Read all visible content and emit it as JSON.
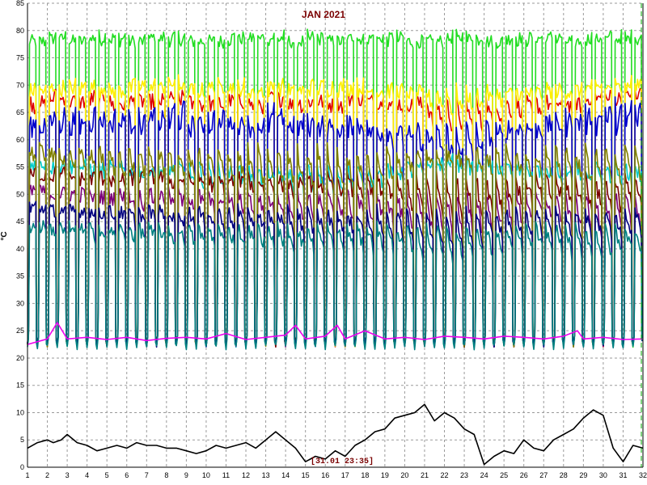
{
  "chart_data": {
    "type": "line",
    "title": "JAN 2021",
    "ylabel": "°C",
    "xlabel": "",
    "xlim": [
      1,
      32
    ],
    "ylim": [
      0,
      85
    ],
    "x_ticks": [
      1,
      2,
      3,
      4,
      5,
      6,
      7,
      8,
      9,
      10,
      11,
      12,
      13,
      14,
      15,
      16,
      17,
      18,
      19,
      20,
      21,
      22,
      23,
      24,
      25,
      26,
      27,
      28,
      29,
      30,
      31,
      32
    ],
    "y_ticks": [
      0,
      5,
      10,
      15,
      20,
      25,
      30,
      35,
      40,
      45,
      50,
      55,
      60,
      65,
      70,
      75,
      80,
      85
    ],
    "grid": true,
    "cursor_label": "[31.01 23:35]",
    "cursor_x": 32,
    "colors": {
      "title": "#7a0000",
      "grid": "#9a9a9a",
      "cursor": "#00aa00"
    },
    "series": [
      {
        "color": "#22dd22",
        "cycle": true,
        "base": 22,
        "peak": 78,
        "hold": 0.45,
        "noise": 2.5,
        "desc_values": [
          78,
          79,
          78,
          79,
          79,
          78,
          79,
          79,
          78,
          78,
          79,
          79,
          79,
          78,
          79,
          78,
          79,
          79,
          79,
          78,
          78,
          79,
          79,
          78,
          79,
          79,
          79,
          78,
          79,
          79,
          79
        ]
      },
      {
        "color": "#dd0000",
        "cycle": true,
        "base": 22,
        "peak": 67,
        "hold": 0.1,
        "noise": 3,
        "desc_values": [
          66,
          68,
          67,
          68,
          66,
          67,
          67,
          68,
          66,
          66,
          67,
          66,
          68,
          66,
          67,
          66,
          68,
          67,
          66,
          66,
          63,
          62,
          62,
          63,
          65,
          65,
          66,
          66,
          68,
          68,
          69
        ]
      },
      {
        "color": "#ffee00",
        "cycle": true,
        "base": 22,
        "peak": 69,
        "hold": 0.08,
        "noise": 3,
        "desc_values": [
          69,
          70,
          70,
          70,
          69,
          70,
          70,
          71,
          69,
          70,
          70,
          69,
          70,
          69,
          70,
          70,
          70,
          69,
          69,
          68,
          66,
          65,
          66,
          67,
          68,
          68,
          69,
          69,
          70,
          70,
          71
        ]
      },
      {
        "color": "#0000cc",
        "cycle": true,
        "base": 22,
        "peak": 62,
        "hold": 0.15,
        "noise": 4,
        "desc_values": [
          63,
          65,
          64,
          65,
          64,
          64,
          65,
          66,
          63,
          64,
          64,
          63,
          65,
          63,
          63,
          62,
          63,
          61,
          60,
          59,
          58,
          57,
          58,
          60,
          62,
          62,
          63,
          64,
          65,
          66,
          66
        ]
      },
      {
        "color": "#00cccc",
        "cycle": true,
        "base": 22,
        "peak": 55,
        "hold": 0.3,
        "noise": 3,
        "desc_values": [
          56,
          55,
          55,
          54,
          54,
          53,
          54,
          54,
          52,
          52,
          52,
          51,
          52,
          51,
          51,
          50,
          51,
          52,
          53,
          54,
          56,
          56,
          55,
          55,
          54,
          54,
          53,
          53,
          52,
          52,
          53
        ]
      },
      {
        "color": "#7a0000",
        "cycle": true,
        "base": 22,
        "peak": 53,
        "hold": 0.55,
        "noise": 3,
        "desc_values": [
          54,
          54,
          53,
          53,
          52,
          53,
          53,
          52,
          52,
          51,
          52,
          51,
          51,
          50,
          51,
          50,
          50,
          49,
          48,
          47,
          46,
          45,
          46,
          47,
          48,
          49,
          49,
          48,
          47,
          47,
          48
        ]
      },
      {
        "color": "#7a007a",
        "cycle": true,
        "base": 22,
        "peak": 50,
        "hold": 0.55,
        "noise": 3,
        "desc_values": [
          51,
          50,
          50,
          49,
          49,
          48,
          49,
          48,
          48,
          47,
          47,
          47,
          47,
          46,
          46,
          46,
          46,
          45,
          45,
          44,
          43,
          42,
          43,
          44,
          45,
          46,
          45,
          44,
          43,
          43,
          44
        ]
      },
      {
        "color": "#808000",
        "cycle": true,
        "base": 22,
        "peak": 58,
        "hold": 0.35,
        "noise": 3,
        "desc_values": [
          57,
          56,
          55,
          55,
          54,
          54,
          54,
          54,
          53,
          53,
          53,
          52,
          52,
          52,
          52,
          51,
          51,
          52,
          53,
          54,
          55,
          55,
          55,
          54,
          54,
          54,
          53,
          53,
          52,
          52,
          53
        ]
      },
      {
        "color": "#000080",
        "cycle": true,
        "base": 22,
        "peak": 47,
        "hold": 0.55,
        "noise": 2.5,
        "desc_values": [
          48,
          47,
          47,
          46,
          46,
          45,
          46,
          45,
          45,
          44,
          44,
          44,
          44,
          43,
          43,
          43,
          43,
          42,
          42,
          42,
          41,
          40,
          41,
          42,
          42,
          43,
          43,
          42,
          42,
          42,
          43
        ]
      },
      {
        "color": "#008080",
        "cycle": true,
        "base": 21.5,
        "peak": 44,
        "hold": 0.55,
        "noise": 2.5,
        "desc_values": [
          44,
          43,
          43,
          42,
          42,
          42,
          42,
          41,
          41,
          41,
          41,
          41,
          41,
          40,
          40,
          40,
          40,
          40,
          40,
          39,
          39,
          38,
          39,
          39,
          40,
          40,
          40,
          39,
          39,
          39,
          40
        ]
      },
      {
        "color": "#ee00ee",
        "cycle": false,
        "points": [
          [
            1,
            22.5
          ],
          [
            2,
            23.5
          ],
          [
            2.5,
            26.5
          ],
          [
            3,
            23.5
          ],
          [
            4,
            23.8
          ],
          [
            5,
            23.4
          ],
          [
            6,
            23.8
          ],
          [
            7,
            23.2
          ],
          [
            8,
            23.6
          ],
          [
            9,
            23.8
          ],
          [
            10,
            23.5
          ],
          [
            11,
            24.5
          ],
          [
            12,
            23.4
          ],
          [
            13,
            23.8
          ],
          [
            14,
            24.2
          ],
          [
            14.5,
            26
          ],
          [
            15,
            23.5
          ],
          [
            16,
            24
          ],
          [
            16.6,
            26
          ],
          [
            17,
            23.5
          ],
          [
            18,
            25
          ],
          [
            19,
            23.5
          ],
          [
            20,
            23.8
          ],
          [
            21,
            23.4
          ],
          [
            22,
            24
          ],
          [
            23,
            23.8
          ],
          [
            24,
            23.5
          ],
          [
            25,
            24
          ],
          [
            26,
            23.8
          ],
          [
            27,
            23.5
          ],
          [
            28,
            24
          ],
          [
            28.7,
            25
          ],
          [
            29,
            23.5
          ],
          [
            30,
            23.8
          ],
          [
            31,
            23.4
          ],
          [
            32,
            23.5
          ]
        ]
      },
      {
        "color": "#000000",
        "cycle": false,
        "points": [
          [
            1,
            3.5
          ],
          [
            1.5,
            4.5
          ],
          [
            2,
            5
          ],
          [
            2.3,
            4.5
          ],
          [
            2.7,
            5
          ],
          [
            3,
            6
          ],
          [
            3.5,
            4.5
          ],
          [
            4,
            4
          ],
          [
            4.5,
            3
          ],
          [
            5,
            3.5
          ],
          [
            5.5,
            4
          ],
          [
            6,
            3.5
          ],
          [
            6.5,
            4.5
          ],
          [
            7,
            4
          ],
          [
            7.5,
            4
          ],
          [
            8,
            3.5
          ],
          [
            8.5,
            3.5
          ],
          [
            9,
            3
          ],
          [
            9.5,
            2.5
          ],
          [
            10,
            3
          ],
          [
            10.5,
            4
          ],
          [
            11,
            3.5
          ],
          [
            11.5,
            4
          ],
          [
            12,
            4.5
          ],
          [
            12.5,
            3.5
          ],
          [
            13,
            5
          ],
          [
            13.5,
            6.5
          ],
          [
            14,
            5
          ],
          [
            14.5,
            3.5
          ],
          [
            15,
            1
          ],
          [
            15.5,
            2
          ],
          [
            16,
            1.5
          ],
          [
            16.5,
            3
          ],
          [
            17,
            2
          ],
          [
            17.5,
            4
          ],
          [
            18,
            5
          ],
          [
            18.5,
            6.5
          ],
          [
            19,
            7
          ],
          [
            19.5,
            9
          ],
          [
            20,
            9.5
          ],
          [
            20.5,
            10
          ],
          [
            21,
            11.5
          ],
          [
            21.5,
            8.5
          ],
          [
            22,
            10
          ],
          [
            22.5,
            9
          ],
          [
            23,
            7
          ],
          [
            23.5,
            6
          ],
          [
            24,
            0.5
          ],
          [
            24.5,
            2
          ],
          [
            25,
            3
          ],
          [
            25.5,
            2.5
          ],
          [
            26,
            5
          ],
          [
            26.5,
            3.5
          ],
          [
            27,
            3
          ],
          [
            27.5,
            5
          ],
          [
            28,
            6
          ],
          [
            28.5,
            7
          ],
          [
            29,
            9
          ],
          [
            29.5,
            10.5
          ],
          [
            30,
            9.5
          ],
          [
            30.5,
            3.5
          ],
          [
            31,
            1
          ],
          [
            31.5,
            4
          ],
          [
            32,
            3.5
          ]
        ]
      }
    ]
  }
}
